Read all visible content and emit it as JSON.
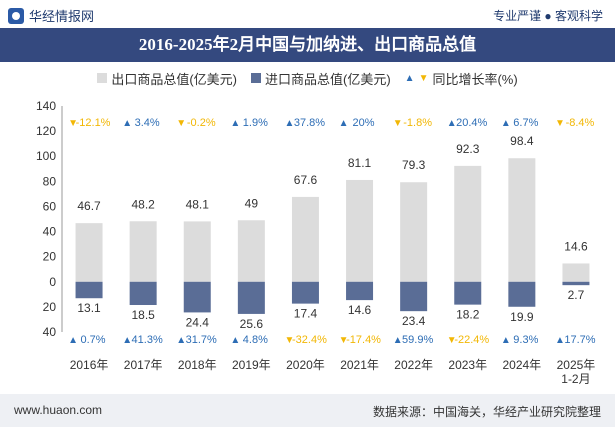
{
  "header": {
    "brand": "华经情报网",
    "tagline": "专业严谨 ● 客观科学"
  },
  "title": "2016-2025年2月中国与加纳进、出口商品总值",
  "legend": {
    "export_label": "出口商品总值(亿美元)",
    "import_label": "进口商品总值(亿美元)",
    "yoy_label": "同比增长率(%)"
  },
  "footer": {
    "url": "www.huaon.com",
    "source": "数据来源：中国海关，华经产业研究院整理"
  },
  "colors": {
    "export_bar": "#dcdcdc",
    "import_bar": "#5a6d96",
    "title_bg": "#34497f",
    "up": "#2d6db5",
    "down": "#f2b705"
  },
  "chart_data": {
    "type": "bar",
    "categories": [
      "2016年",
      "2017年",
      "2018年",
      "2019年",
      "2020年",
      "2021年",
      "2022年",
      "2023年",
      "2024年",
      "2025年\n1-2月"
    ],
    "series": [
      {
        "name": "出口商品总值(亿美元)",
        "values": [
          46.7,
          48.2,
          48.1,
          49,
          67.6,
          81.1,
          79.3,
          92.3,
          98.4,
          14.6
        ]
      },
      {
        "name": "进口商品总值(亿美元)",
        "values": [
          13.1,
          18.5,
          24.4,
          25.6,
          17.4,
          14.6,
          23.4,
          18.2,
          19.9,
          2.7
        ]
      }
    ],
    "export_yoy": [
      "-12.1%",
      "3.4%",
      "-0.2%",
      "1.9%",
      "37.8%",
      "20%",
      "-1.8%",
      "20.4%",
      "6.7%",
      "-8.4%"
    ],
    "import_yoy": [
      "0.7%",
      "41.3%",
      "31.7%",
      "4.8%",
      "-32.4%",
      "-17.4%",
      "59.9%",
      "-22.4%",
      "9.3%",
      "17.7%"
    ],
    "ytick_labels": [
      "40",
      "20",
      "0",
      "20",
      "40",
      "60",
      "80",
      "100",
      "120",
      "140"
    ],
    "yticks": [
      -40,
      -20,
      0,
      20,
      40,
      60,
      80,
      100,
      120,
      140
    ],
    "ylim": [
      -40,
      140
    ],
    "grid": false,
    "legend_position": "top"
  }
}
